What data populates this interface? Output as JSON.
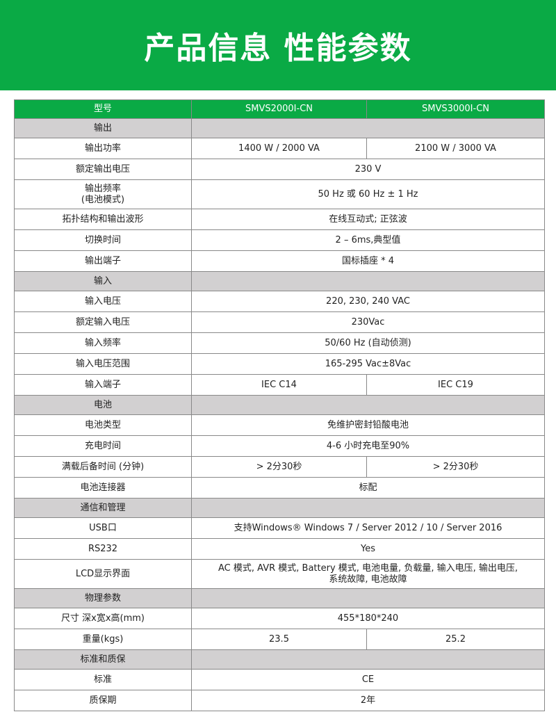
{
  "title": "产品信息 性能参数",
  "colors": {
    "brand_green": "#0aaa45",
    "category_gray": "#d2d0d1"
  },
  "header": {
    "label": "型号",
    "models": [
      "SMVS2000I-CN",
      "SMVS3000I-CN"
    ]
  },
  "rows": [
    {
      "type": "cat",
      "label": "输出"
    },
    {
      "type": "row",
      "label": "输出功率",
      "values": [
        "1400 W / 2000 VA",
        "2100 W / 3000 VA"
      ]
    },
    {
      "type": "row",
      "label": "额定输出电压",
      "values": [
        "230 V"
      ]
    },
    {
      "type": "tall",
      "label": "输出频率\n(电池模式)",
      "values": [
        "50 Hz 或 60 Hz ± 1 Hz"
      ]
    },
    {
      "type": "row",
      "label": "拓扑结构和输出波形",
      "values": [
        "在线互动式; 正弦波"
      ]
    },
    {
      "type": "row",
      "label": "切换时间",
      "values": [
        "2 – 6ms,典型值"
      ]
    },
    {
      "type": "row",
      "label": "输出端子",
      "values": [
        "国标插座 * 4"
      ]
    },
    {
      "type": "cat",
      "label": "输入"
    },
    {
      "type": "row",
      "label": "输入电压",
      "values": [
        "220, 230, 240 VAC"
      ]
    },
    {
      "type": "row",
      "label": "额定输入电压",
      "values": [
        "230Vac"
      ]
    },
    {
      "type": "row",
      "label": "输入频率",
      "values": [
        "50/60 Hz (自动侦测)"
      ]
    },
    {
      "type": "row",
      "label": "输入电压范围",
      "values": [
        "165-295 Vac±8Vac"
      ]
    },
    {
      "type": "row",
      "label": "输入端子",
      "values": [
        "IEC C14",
        "IEC C19"
      ]
    },
    {
      "type": "cat",
      "label": "电池"
    },
    {
      "type": "row",
      "label": "电池类型",
      "values": [
        "免维护密封铅酸电池"
      ]
    },
    {
      "type": "row",
      "label": "充电时间",
      "values": [
        "4-6 小时充电至90%"
      ]
    },
    {
      "type": "row",
      "label": "满载后备时间 (分钟)",
      "values": [
        "> 2分30秒",
        "> 2分30秒"
      ]
    },
    {
      "type": "row",
      "label": "电池连接器",
      "values": [
        "标配"
      ]
    },
    {
      "type": "cat",
      "label": "通信和管理"
    },
    {
      "type": "row",
      "label": "USB口",
      "values": [
        "支持Windows® Windows 7 / Server 2012 / 10 / Server 2016"
      ]
    },
    {
      "type": "row",
      "label": "RS232",
      "values": [
        "Yes"
      ]
    },
    {
      "type": "tall",
      "label": "LCD显示界面",
      "values": [
        "AC 模式, AVR 模式, Battery 模式, 电池电量, 负载量, 输入电压, 输出电压,\n系统故障, 电池故障"
      ]
    },
    {
      "type": "cat",
      "label": "物理参数"
    },
    {
      "type": "row",
      "label": "尺寸 深x宽x高(mm)",
      "values": [
        "455*180*240"
      ]
    },
    {
      "type": "row",
      "label": "重量(kgs)",
      "values": [
        "23.5",
        "25.2"
      ]
    },
    {
      "type": "cat",
      "label": "标准和质保"
    },
    {
      "type": "row",
      "label": "标准",
      "values": [
        "CE"
      ]
    },
    {
      "type": "row",
      "label": "质保期",
      "values": [
        "2年"
      ]
    }
  ]
}
